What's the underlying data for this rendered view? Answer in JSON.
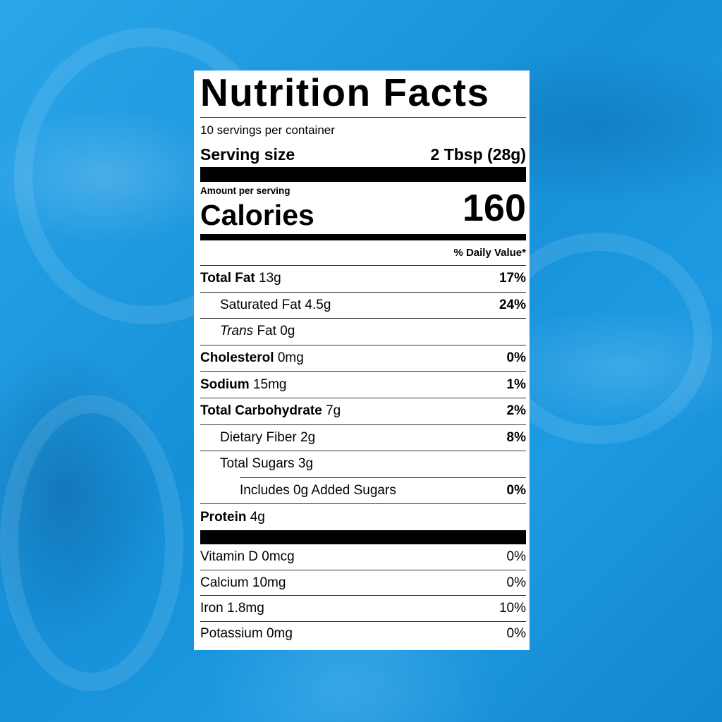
{
  "label": {
    "title": "Nutrition Facts",
    "servings_per_container": "10 servings per container",
    "serving_size_label": "Serving size",
    "serving_size_value": "2 Tbsp (28g)",
    "amount_per_serving": "Amount per serving",
    "calories_label": "Calories",
    "calories_value": "160",
    "daily_value_header": "% Daily Value*",
    "nutrients": [
      {
        "name": "Total Fat",
        "amount": "13g",
        "dv": "17%"
      },
      {
        "name": "Saturated Fat",
        "amount": "4.5g",
        "dv": "24%"
      },
      {
        "name": "Trans",
        "name_suffix": "Fat",
        "amount": "0g",
        "dv": ""
      },
      {
        "name": "Cholesterol",
        "amount": "0mg",
        "dv": "0%"
      },
      {
        "name": "Sodium",
        "amount": "15mg",
        "dv": "1%"
      },
      {
        "name": "Total Carbohydrate",
        "amount": "7g",
        "dv": "2%"
      },
      {
        "name": "Dietary Fiber",
        "amount": "2g",
        "dv": "8%"
      },
      {
        "name": "Total Sugars",
        "amount": "3g",
        "dv": ""
      },
      {
        "name": "Includes 0g Added Sugars",
        "amount": "",
        "dv": "0%"
      },
      {
        "name": "Protein",
        "amount": "4g",
        "dv": ""
      }
    ],
    "vitamins": [
      {
        "text": "Vitamin D 0mcg",
        "dv": "0%"
      },
      {
        "text": "Calcium 10mg",
        "dv": "0%"
      },
      {
        "text": "Iron 1.8mg",
        "dv": "10%"
      },
      {
        "text": "Potassium 0mg",
        "dv": "0%"
      }
    ]
  },
  "colors": {
    "background": "#1a96dd",
    "label_bg": "#ffffff",
    "text": "#000000"
  }
}
